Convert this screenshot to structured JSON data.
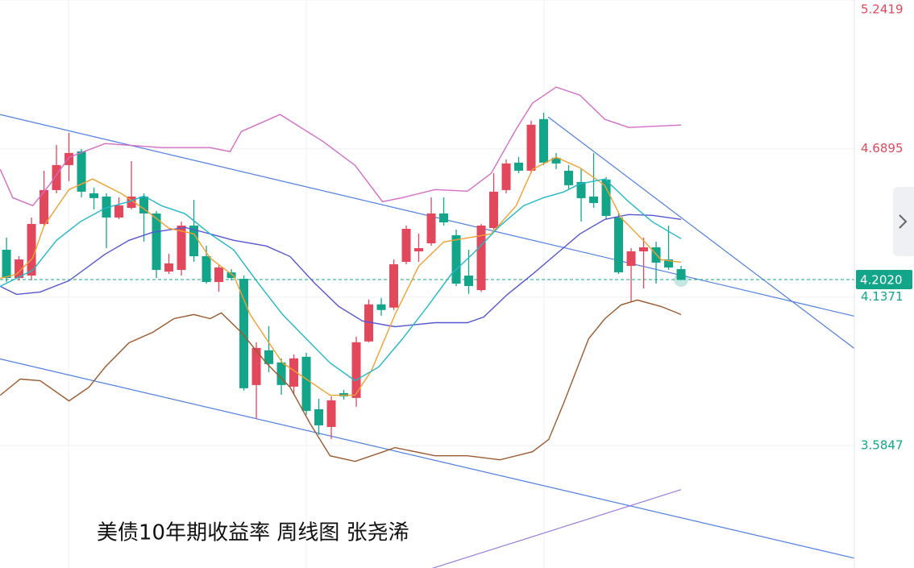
{
  "chart_data": {
    "type": "candlestick",
    "title": "美债10年期收益率 周线图 张尧浠",
    "up_color": "#e2475c",
    "down_color": "#12a589",
    "xlim": [
      -0.52,
      67.87
    ],
    "ylim": [
      3.1295,
      5.2419
    ],
    "yticks": [
      5.2419,
      4.6895,
      4.1371,
      3.5847
    ],
    "price_line": {
      "value": 4.202,
      "label": "4.2020"
    },
    "open": [
      4.313,
      4.208,
      4.217,
      4.409,
      4.535,
      4.628,
      4.679,
      4.523,
      4.511,
      4.433,
      4.469,
      4.511,
      4.448,
      4.232,
      4.238,
      4.403,
      4.289,
      4.193,
      4.229,
      4.205,
      3.81,
      3.939,
      3.894,
      3.804,
      3.915,
      3.72,
      3.654,
      3.78,
      3.762,
      3.972,
      4.11,
      4.098,
      4.268,
      4.307,
      4.337,
      4.448,
      4.367,
      4.217,
      4.163,
      4.394,
      4.535,
      4.637,
      4.607,
      4.799,
      4.655,
      4.607,
      4.565,
      4.511,
      4.574,
      4.433,
      4.253,
      4.307,
      4.322,
      4.277,
      4.241
    ],
    "high": [
      4.358,
      4.289,
      4.433,
      4.607,
      4.703,
      4.748,
      4.688,
      4.544,
      4.523,
      4.508,
      4.643,
      4.523,
      4.457,
      4.298,
      4.418,
      4.499,
      4.328,
      4.259,
      4.241,
      4.217,
      3.969,
      4.029,
      3.909,
      3.924,
      3.93,
      3.759,
      3.768,
      3.792,
      3.99,
      4.128,
      4.134,
      4.277,
      4.403,
      4.373,
      4.508,
      4.508,
      4.388,
      4.313,
      4.409,
      4.598,
      4.649,
      4.658,
      4.793,
      4.823,
      4.673,
      4.628,
      4.613,
      4.673,
      4.583,
      4.448,
      4.319,
      4.358,
      4.343,
      4.403,
      4.253
    ],
    "low": [
      4.193,
      4.199,
      4.199,
      4.403,
      4.523,
      4.568,
      4.508,
      4.463,
      4.319,
      4.427,
      4.463,
      4.343,
      4.208,
      4.223,
      4.217,
      4.268,
      4.187,
      4.157,
      4.199,
      3.789,
      3.684,
      3.858,
      3.774,
      3.774,
      3.699,
      3.624,
      3.609,
      3.756,
      3.729,
      3.969,
      4.068,
      4.089,
      4.259,
      4.268,
      4.328,
      4.403,
      4.178,
      4.149,
      4.157,
      4.388,
      4.523,
      4.598,
      4.598,
      4.628,
      4.613,
      4.538,
      4.418,
      4.469,
      4.427,
      4.223,
      4.118,
      4.169,
      4.187,
      4.238,
      4.199
    ],
    "close": [
      4.208,
      4.277,
      4.409,
      4.535,
      4.628,
      4.673,
      4.529,
      4.505,
      4.433,
      4.478,
      4.511,
      4.448,
      4.238,
      4.262,
      4.403,
      4.289,
      4.193,
      4.247,
      4.208,
      3.798,
      3.948,
      3.888,
      3.81,
      3.909,
      3.714,
      3.66,
      3.753,
      3.768,
      3.969,
      4.11,
      4.089,
      4.259,
      4.391,
      4.319,
      4.448,
      4.415,
      4.187,
      4.178,
      4.403,
      4.529,
      4.634,
      4.607,
      4.778,
      4.637,
      4.634,
      4.553,
      4.505,
      4.487,
      4.439,
      4.229,
      4.307,
      4.322,
      4.265,
      4.247,
      4.202
    ],
    "overlays": [
      {
        "color": "#d46cc4",
        "x": [
          -0.5,
          0.5,
          2.1,
          3.4,
          5.0,
          7.9,
          12.4,
          16.3,
          17.9,
          18.8,
          21.9,
          25.3,
          27.9,
          30.1,
          31.7,
          34.3,
          36.9,
          38.8,
          40.8,
          42.1,
          44.0,
          45.9,
          47.9,
          49.8,
          54.0
        ],
        "values": [
          4.612,
          4.507,
          4.477,
          4.552,
          4.657,
          4.708,
          4.693,
          4.693,
          4.678,
          4.753,
          4.816,
          4.717,
          4.627,
          4.492,
          4.507,
          4.537,
          4.531,
          4.597,
          4.762,
          4.858,
          4.918,
          4.888,
          4.798,
          4.768,
          4.777
        ]
      },
      {
        "color": "#9c5a2e",
        "x": [
          -0.5,
          1.1,
          2.7,
          5.0,
          6.6,
          7.9,
          9.8,
          11.7,
          13.4,
          15.0,
          16.3,
          17.2,
          18.8,
          20.8,
          22.7,
          24.3,
          25.9,
          27.9,
          29.8,
          31.1,
          34.3,
          36.9,
          39.5,
          42.1,
          43.4,
          44.6,
          46.6,
          47.9,
          49.2,
          50.5,
          52.4,
          54.0
        ],
        "values": [
          3.772,
          3.832,
          3.826,
          3.751,
          3.802,
          3.877,
          3.967,
          4.006,
          4.057,
          4.072,
          4.057,
          4.078,
          4.006,
          3.892,
          3.802,
          3.667,
          3.547,
          3.526,
          3.556,
          3.577,
          3.547,
          3.547,
          3.532,
          3.562,
          3.607,
          3.742,
          3.982,
          4.057,
          4.108,
          4.126,
          4.102,
          4.072
        ]
      },
      {
        "color": "#5656d2",
        "x": [
          -0.5,
          0.8,
          2.7,
          5.0,
          7.9,
          9.8,
          11.7,
          14.3,
          16.3,
          18.2,
          20.8,
          22.7,
          24.6,
          26.6,
          28.5,
          31.1,
          34.3,
          36.9,
          38.2,
          40.1,
          42.1,
          44.0,
          45.9,
          47.9,
          49.8,
          51.7,
          54.0
        ],
        "values": [
          4.177,
          4.147,
          4.156,
          4.198,
          4.297,
          4.348,
          4.378,
          4.396,
          4.372,
          4.348,
          4.327,
          4.288,
          4.192,
          4.102,
          4.048,
          4.027,
          4.042,
          4.042,
          4.063,
          4.147,
          4.222,
          4.297,
          4.372,
          4.426,
          4.444,
          4.441,
          4.426
        ]
      },
      {
        "color": "#f0a030",
        "x": [
          -0.5,
          0.8,
          2.1,
          3.0,
          5.0,
          6.9,
          9.2,
          11.1,
          13.0,
          15.0,
          16.3,
          18.2,
          19.5,
          20.8,
          22.1,
          24.0,
          25.9,
          27.9,
          29.2,
          31.1,
          33.0,
          35.0,
          36.9,
          38.8,
          40.8,
          42.1,
          44.0,
          45.9,
          47.9,
          49.2,
          51.1,
          52.4,
          54.0
        ],
        "values": [
          4.207,
          4.222,
          4.282,
          4.402,
          4.537,
          4.576,
          4.522,
          4.462,
          4.393,
          4.372,
          4.282,
          4.216,
          4.072,
          3.982,
          3.892,
          3.832,
          3.772,
          3.772,
          3.862,
          4.072,
          4.252,
          4.342,
          4.357,
          4.372,
          4.477,
          4.612,
          4.657,
          4.618,
          4.552,
          4.432,
          4.342,
          4.276,
          4.267
        ]
      },
      {
        "color": "#22b8c8",
        "x": [
          -0.5,
          2.1,
          4.0,
          5.9,
          7.9,
          9.8,
          11.0,
          12.4,
          14.3,
          16.3,
          18.2,
          20.1,
          22.1,
          24.0,
          25.9,
          27.9,
          29.8,
          31.7,
          33.7,
          35.6,
          37.5,
          39.5,
          41.4,
          43.0,
          44.6,
          45.9,
          47.9,
          49.8,
          51.7,
          54.0
        ],
        "values": [
          4.177,
          4.237,
          4.348,
          4.417,
          4.468,
          4.492,
          4.513,
          4.477,
          4.447,
          4.372,
          4.312,
          4.192,
          4.072,
          3.982,
          3.892,
          3.826,
          3.877,
          3.982,
          4.102,
          4.222,
          4.306,
          4.402,
          4.477,
          4.507,
          4.528,
          4.558,
          4.576,
          4.492,
          4.417,
          4.354
        ]
      }
    ],
    "trendlines": [
      {
        "color": "#4f7fe0",
        "x": [
          -0.52,
          67.87
        ],
        "values": [
          4.816,
          4.066
        ]
      },
      {
        "color": "#4f7fe0",
        "x": [
          -0.52,
          67.87
        ],
        "values": [
          3.907,
          3.166
        ]
      },
      {
        "color": "#4f7fe0",
        "x": [
          43.35,
          67.87
        ],
        "values": [
          4.807,
          3.946
        ]
      },
      {
        "color": "#9a7ce0",
        "x": [
          34.0,
          54.0
        ],
        "values": [
          3.127,
          3.421
        ]
      }
    ]
  }
}
